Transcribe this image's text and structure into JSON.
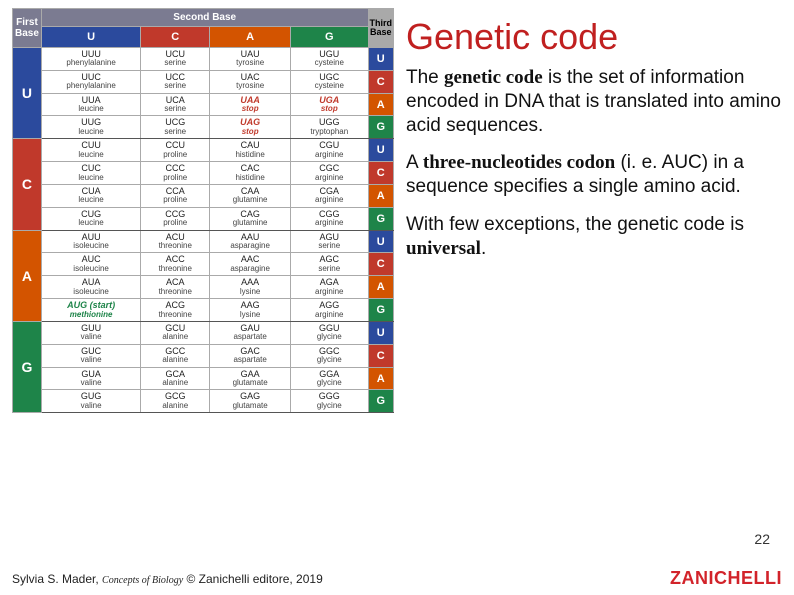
{
  "title": "Genetic code",
  "para1_a": "The ",
  "para1_b": "genetic code",
  "para1_c": " is the set of information encoded in DNA that is translated into amino acid sequences.",
  "para2_a": "A ",
  "para2_b": "three-nucleotides codon",
  "para2_c": " (i. e. AUC) in a sequence specifies a single amino acid.",
  "para3_a": "With few exceptions, the genetic code is ",
  "para3_b": "universal",
  "para3_c": ".",
  "page_num": "22",
  "footer_author": "Sylvia S. Mader, ",
  "footer_book": "Concepts of Biology",
  "footer_pub": " © Zanichelli editore, 2019",
  "logo": "ZANICHELLI",
  "table": {
    "hdr_first": "First\nBase",
    "hdr_second": "Second Base",
    "hdr_third": "Third\nBase",
    "bases": [
      "U",
      "C",
      "A",
      "G"
    ],
    "colors": {
      "U": "#2b4a9d",
      "C": "#c0392b",
      "A": "#d35400",
      "G": "#1e8449"
    },
    "cells": {
      "UUU": "phenylalanine",
      "UUC": "phenylalanine",
      "UUA": "leucine",
      "UUG": "leucine",
      "UCU": "serine",
      "UCC": "serine",
      "UCA": "serine",
      "UCG": "serine",
      "UAU": "tyrosine",
      "UAC": "tyrosine",
      "UAA": "stop",
      "UAG": "stop",
      "UGU": "cysteine",
      "UGC": "cysteine",
      "UGA": "stop",
      "UGG": "tryptophan",
      "CUU": "leucine",
      "CUC": "leucine",
      "CUA": "leucine",
      "CUG": "leucine",
      "CCU": "proline",
      "CCC": "proline",
      "CCA": "proline",
      "CCG": "proline",
      "CAU": "histidine",
      "CAC": "histidine",
      "CAA": "glutamine",
      "CAG": "glutamine",
      "CGU": "arginine",
      "CGC": "arginine",
      "CGA": "arginine",
      "CGG": "arginine",
      "AUU": "isoleucine",
      "AUC": "isoleucine",
      "AUA": "isoleucine",
      "AUG": "methionine",
      "ACU": "threonine",
      "ACC": "threonine",
      "ACA": "threonine",
      "ACG": "threonine",
      "AAU": "asparagine",
      "AAC": "asparagine",
      "AAA": "lysine",
      "AAG": "lysine",
      "AGU": "serine",
      "AGC": "serine",
      "AGA": "arginine",
      "AGG": "arginine",
      "GUU": "valine",
      "GUC": "valine",
      "GUA": "valine",
      "GUG": "valine",
      "GCU": "alanine",
      "GCC": "alanine",
      "GCA": "alanine",
      "GCG": "alanine",
      "GAU": "aspartate",
      "GAC": "aspartate",
      "GAA": "glutamate",
      "GAG": "glutamate",
      "GGU": "glycine",
      "GGC": "glycine",
      "GGA": "glycine",
      "GGG": "glycine"
    },
    "start": "AUG",
    "stops": [
      "UAA",
      "UAG",
      "UGA"
    ]
  }
}
